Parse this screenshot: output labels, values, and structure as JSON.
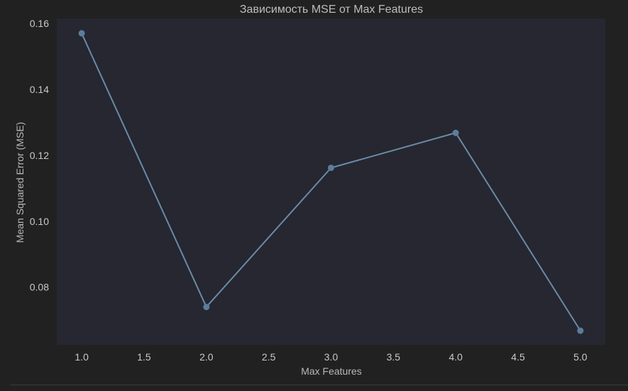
{
  "chart_data": {
    "type": "line",
    "title": "Зависимость MSE от Max Features",
    "xlabel": "Max Features",
    "ylabel": "Mean Squared Error (MSE)",
    "x": [
      1.0,
      2.0,
      3.0,
      4.0,
      5.0
    ],
    "series": [
      {
        "values": [
          0.157,
          0.074,
          0.1162,
          0.1268,
          0.0668
        ]
      }
    ],
    "xlim": [
      0.8,
      5.2
    ],
    "ylim": [
      0.0625,
      0.1615
    ],
    "xticks": [
      1.0,
      1.5,
      2.0,
      2.5,
      3.0,
      3.5,
      4.0,
      4.5,
      5.0
    ],
    "xtick_labels": [
      "1.0",
      "1.5",
      "2.0",
      "2.5",
      "3.0",
      "3.5",
      "4.0",
      "4.5",
      "5.0"
    ],
    "yticks": [
      0.08,
      0.1,
      0.12,
      0.14,
      0.16
    ],
    "ytick_labels": [
      "0.08",
      "0.10",
      "0.12",
      "0.14",
      "0.16"
    ],
    "grid": false,
    "colors": {
      "figure_bg": "#212121",
      "plot_bg": "#262730",
      "line": "#6a8aa8",
      "marker": "#5c7d9b"
    }
  }
}
